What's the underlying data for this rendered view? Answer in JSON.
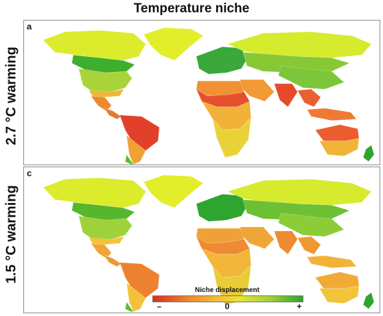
{
  "title": "Temperature niche",
  "panels": [
    {
      "letter": "a",
      "row_label": "2.7 °C warming",
      "regions": {
        "greenland": "#e2ee2a",
        "canada_north": "#dcec2c",
        "canada_south": "#3fae2c",
        "usa": "#a8d43a",
        "usa_south": "#f0b638",
        "mexico": "#ea8a2e",
        "central_america": "#e87a2a",
        "south_america_north": "#e2402a",
        "south_america_south": "#f0a236",
        "patagonia": "#5fbb30",
        "europe": "#3aa83a",
        "russia": "#d6ea2e",
        "russia_south": "#86c934",
        "middle_east": "#f29a34",
        "africa_north": "#f29034",
        "africa_sahel": "#e6502c",
        "africa_central": "#f2b23a",
        "africa_south": "#e9d238",
        "india": "#e64a2a",
        "china": "#7cc63a",
        "southeast_asia": "#ea6030",
        "indonesia": "#f07a34",
        "australia_north": "#ec5c30",
        "australia_south": "#f0b438",
        "new_zealand": "#2ea52f"
      }
    },
    {
      "letter": "c",
      "row_label": "1.5 °C warming",
      "regions": {
        "greenland": "#e2ee2a",
        "canada_north": "#dcec2c",
        "canada_south": "#56b72e",
        "usa": "#9fd13a",
        "usa_south": "#f2c43a",
        "mexico": "#f0a636",
        "central_america": "#ee9834",
        "south_america_north": "#ec8230",
        "south_america_south": "#f2c23a",
        "patagonia": "#5fbb30",
        "europe": "#2ea52f",
        "russia": "#d6ea2e",
        "russia_south": "#6cc034",
        "middle_east": "#f0a636",
        "africa_north": "#f0a034",
        "africa_sahel": "#ee8a32",
        "africa_central": "#f2b63a",
        "africa_south": "#eacb38",
        "india": "#ee8a32",
        "china": "#8ccc38",
        "southeast_asia": "#f09834",
        "indonesia": "#f2b23a",
        "australia_north": "#f2aa36",
        "australia_south": "#f2c43a",
        "new_zealand": "#2ea52f"
      }
    }
  ],
  "legend": {
    "title": "Niche displacement",
    "min_label": "–",
    "mid_label": "0",
    "max_label": "+",
    "colors": [
      "#d7301f",
      "#f08a2e",
      "#f2c33a",
      "#e6e62f",
      "#9fd13a",
      "#2ea52f"
    ]
  }
}
